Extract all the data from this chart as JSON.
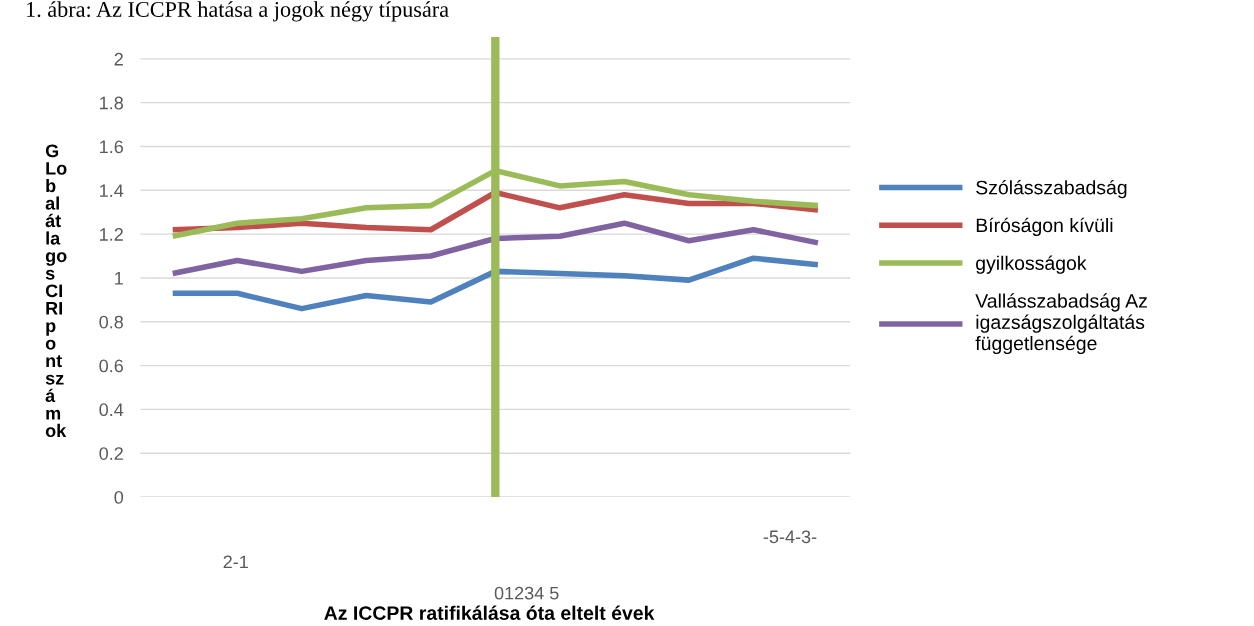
{
  "chart_data": {
    "type": "line",
    "title": "1. ábra: Az ICCPR hatása a jogok négy típusára",
    "ylabel": "G\nLo\nb\nal\nát\nla\ngo\ns\nCI\nRI\np\no\nnt\nsz\ná\nm\nok",
    "categories": [
      null,
      null,
      null,
      null,
      null,
      null,
      null,
      null,
      null,
      null,
      null
    ],
    "ylim": [
      0,
      2.1
    ],
    "yticks": [
      0,
      0.2,
      0.4,
      0.6,
      0.8,
      1,
      1.2,
      1.4,
      1.6,
      1.8,
      2
    ],
    "tick_labels": "y",
    "grid": "y",
    "legend": "right",
    "annotations": [
      "2-1",
      "01234 5",
      "-5-4-3-",
      "Az ICCPR ratifikálása óta eltelt évek"
    ],
    "series": [
      {
        "name": "Szólásszabadság",
        "color": "#4f81bd",
        "values": [
          0.93,
          0.93,
          0.86,
          0.92,
          0.89,
          1.03,
          1.02,
          1.01,
          0.99,
          1.09,
          1.06
        ]
      },
      {
        "name": "Bíróságon kívüli",
        "color": "#c0504d",
        "values": [
          1.22,
          1.23,
          1.25,
          1.23,
          1.22,
          1.39,
          1.32,
          1.38,
          1.34,
          1.34,
          1.31
        ]
      },
      {
        "name": "gyilkosságok",
        "color": "#9bbb59",
        "values": [
          1.19,
          1.25,
          1.27,
          1.32,
          1.33,
          1.49,
          1.42,
          1.44,
          1.38,
          1.35,
          1.33
        ]
      },
      {
        "name": "Vallásszabadság Az\nigazságszolgáltatás\nfüggetlensége",
        "color": "#8064a2",
        "values": [
          1.02,
          1.08,
          1.03,
          1.08,
          1.1,
          1.18,
          1.19,
          1.25,
          1.17,
          1.22,
          1.16
        ]
      }
    ]
  }
}
